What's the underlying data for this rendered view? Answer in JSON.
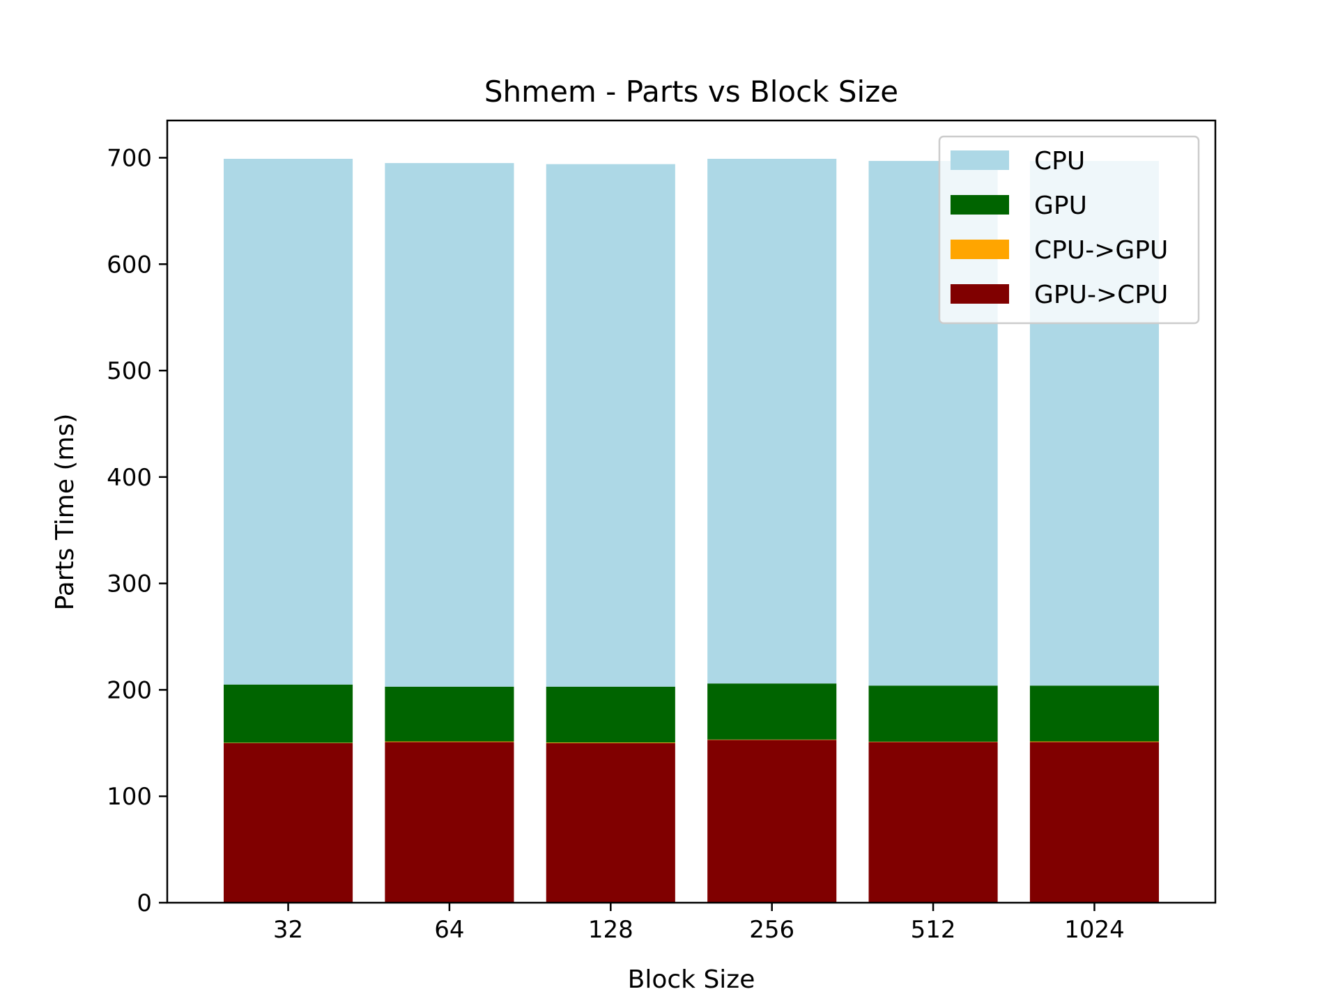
{
  "chart_data": {
    "type": "bar",
    "stacked": true,
    "title": "Shmem - Parts vs Block Size",
    "xlabel": "Block Size",
    "ylabel": "Parts Time (ms)",
    "ylim": [
      0,
      735
    ],
    "yticks": [
      0,
      100,
      200,
      300,
      400,
      500,
      600,
      700
    ],
    "categories": [
      "32",
      "64",
      "128",
      "256",
      "512",
      "1024"
    ],
    "series": [
      {
        "name": "GPU->CPU",
        "color": "#800000",
        "values": [
          150,
          151,
          150,
          153,
          151,
          151
        ]
      },
      {
        "name": "CPU->GPU",
        "color": "#ffa500",
        "values": [
          0.3,
          0.5,
          0.5,
          0.3,
          0.3,
          0.5
        ]
      },
      {
        "name": "GPU",
        "color": "#006400",
        "values": [
          54.7,
          51.5,
          52.5,
          52.7,
          52.7,
          52.5
        ]
      },
      {
        "name": "CPU",
        "color": "#add8e6",
        "values": [
          494,
          492,
          491,
          493,
          493,
          493
        ]
      }
    ],
    "legend_position": "top-right",
    "grid": false
  }
}
